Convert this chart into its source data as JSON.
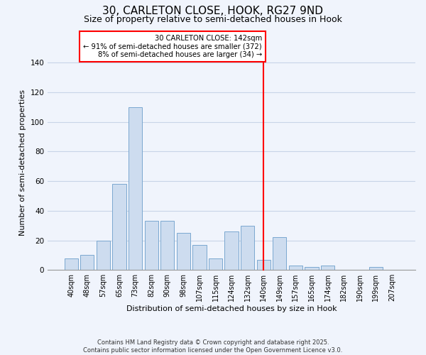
{
  "title": "30, CARLETON CLOSE, HOOK, RG27 9ND",
  "subtitle": "Size of property relative to semi-detached houses in Hook",
  "xlabel": "Distribution of semi-detached houses by size in Hook",
  "ylabel": "Number of semi-detached properties",
  "bar_labels": [
    "40sqm",
    "48sqm",
    "57sqm",
    "65sqm",
    "73sqm",
    "82sqm",
    "90sqm",
    "98sqm",
    "107sqm",
    "115sqm",
    "124sqm",
    "132sqm",
    "140sqm",
    "149sqm",
    "157sqm",
    "165sqm",
    "174sqm",
    "182sqm",
    "190sqm",
    "199sqm",
    "207sqm"
  ],
  "bar_heights": [
    8,
    10,
    20,
    58,
    110,
    33,
    33,
    25,
    17,
    8,
    26,
    30,
    7,
    22,
    3,
    2,
    3,
    0,
    0,
    2,
    0
  ],
  "bar_color": "#cddcef",
  "bar_edge_color": "#7aa8d0",
  "grid_color": "#c8d4e8",
  "vline_x_index": 12,
  "vline_color": "red",
  "annotation_title": "30 CARLETON CLOSE: 142sqm",
  "annotation_line1": "← 91% of semi-detached houses are smaller (372)",
  "annotation_line2": "8% of semi-detached houses are larger (34) →",
  "annotation_box_facecolor": "#ffffff",
  "annotation_box_edge": "red",
  "footer1": "Contains HM Land Registry data © Crown copyright and database right 2025.",
  "footer2": "Contains public sector information licensed under the Open Government Licence v3.0.",
  "ylim": [
    0,
    145
  ],
  "bg_color": "#f0f4fc",
  "title_fontsize": 11,
  "subtitle_fontsize": 9,
  "tick_fontsize": 7,
  "ylabel_fontsize": 8,
  "xlabel_fontsize": 8
}
